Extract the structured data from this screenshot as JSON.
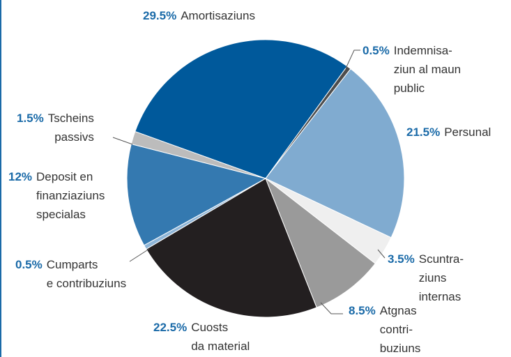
{
  "chart_data": {
    "type": "pie",
    "categories": [
      "Amortisaziuns",
      "Indemnisa-\nziun al maun\npublic",
      "Persunal",
      "Scuntra-\nziuns\ninternas",
      "Atgnas\ncontri-\nbuziuns",
      "Cuosts\nda material",
      "Cumparts\ne contribuziuns",
      "Deposit en\nfinanziaziuns\nspecialas",
      "Tscheins\npassivs"
    ],
    "values": [
      29.5,
      0.5,
      21.5,
      3.5,
      8.5,
      22.5,
      0.5,
      12,
      1.5
    ],
    "value_labels": [
      "29.5%",
      "0.5%",
      "21.5%",
      "3.5%",
      "8.5%",
      "22.5%",
      "0.5%",
      "12%",
      "1.5%"
    ],
    "colors": [
      "#00599b",
      "#4d4d4d",
      "#80abd0",
      "#efefef",
      "#9a9a9a",
      "#231f20",
      "#8fb6d8",
      "#3479b0",
      "#bcbcbc"
    ]
  }
}
